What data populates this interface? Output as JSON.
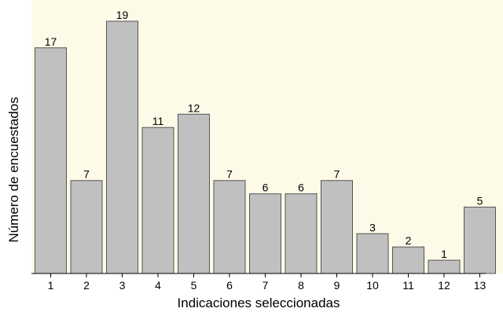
{
  "chart_data": {
    "type": "bar",
    "categories": [
      "1",
      "2",
      "3",
      "4",
      "5",
      "6",
      "7",
      "8",
      "9",
      "10",
      "11",
      "12",
      "13"
    ],
    "values": [
      17,
      7,
      19,
      11,
      12,
      7,
      6,
      6,
      7,
      3,
      2,
      1,
      5
    ],
    "data_labels": [
      "17",
      "7",
      "19",
      "11",
      "12",
      "7",
      "6",
      "6",
      "7",
      "3",
      "2",
      "1",
      "5"
    ],
    "xlabel": "Indicaciones seleccionadas",
    "ylabel": "Número de encuestados",
    "ylim": [
      0,
      19
    ],
    "grid": false,
    "colors": {
      "bar_fill": "#c0c0c0",
      "bar_stroke": "#555555",
      "plot_background": "#fdfbe8",
      "axis": "#000000"
    }
  }
}
